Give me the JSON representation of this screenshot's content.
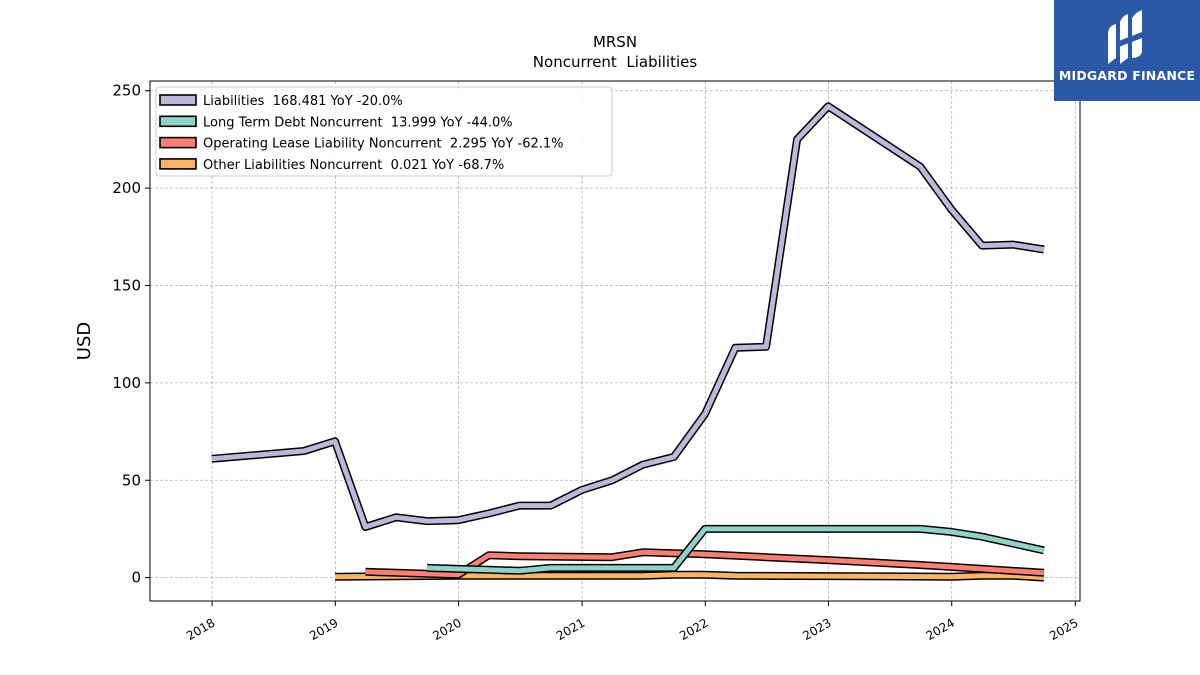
{
  "chart_data": {
    "type": "line",
    "title": "MRSN",
    "subtitle": "Noncurrent  Liabilities",
    "xlabel": "",
    "ylabel": "USD",
    "xlim": [
      "2017-07-01",
      "2025-01-15"
    ],
    "ylim": [
      -12,
      255
    ],
    "x_ticks": [
      "2018",
      "2019",
      "2020",
      "2021",
      "2022",
      "2023",
      "2024",
      "2025"
    ],
    "y_ticks": [
      0,
      50,
      100,
      150,
      200,
      250
    ],
    "grid": true,
    "legend_position": "top-left",
    "series": [
      {
        "name": "Liabilities  168.481 YoY -20.0%",
        "color": "#bcb8d9",
        "points": [
          [
            "2017-12-31",
            61.0
          ],
          [
            "2018-09-30",
            65.0
          ],
          [
            "2018-12-31",
            70.0
          ],
          [
            "2019-03-31",
            26.0
          ],
          [
            "2019-06-30",
            31.0
          ],
          [
            "2019-09-30",
            29.0
          ],
          [
            "2019-12-31",
            29.5
          ],
          [
            "2020-03-31",
            33.0
          ],
          [
            "2020-06-30",
            37.0
          ],
          [
            "2020-09-30",
            37.0
          ],
          [
            "2020-12-31",
            45.0
          ],
          [
            "2021-03-31",
            50.0
          ],
          [
            "2021-06-30",
            58.0
          ],
          [
            "2021-09-30",
            62.0
          ],
          [
            "2021-12-31",
            84.0
          ],
          [
            "2022-03-31",
            118.0
          ],
          [
            "2022-06-30",
            118.5
          ],
          [
            "2022-09-30",
            225.0
          ],
          [
            "2022-12-31",
            242.0
          ],
          [
            "2023-09-30",
            211.0
          ],
          [
            "2023-12-31",
            189.0
          ],
          [
            "2024-03-31",
            170.5
          ],
          [
            "2024-06-30",
            171.0
          ],
          [
            "2024-09-30",
            168.5
          ]
        ]
      },
      {
        "name": "Long Term Debt Noncurrent  13.999 YoY -44.0%",
        "color": "#8dd3c7",
        "points": [
          [
            "2019-09-30",
            5.0
          ],
          [
            "2019-12-31",
            4.5
          ],
          [
            "2020-03-31",
            4.0
          ],
          [
            "2020-06-30",
            3.5
          ],
          [
            "2020-09-30",
            5.0
          ],
          [
            "2020-12-31",
            5.0
          ],
          [
            "2021-03-31",
            5.0
          ],
          [
            "2021-06-30",
            5.0
          ],
          [
            "2021-09-30",
            5.0
          ],
          [
            "2021-12-31",
            25.0
          ],
          [
            "2022-03-31",
            25.0
          ],
          [
            "2022-12-31",
            25.0
          ],
          [
            "2023-09-30",
            25.0
          ],
          [
            "2023-12-31",
            23.5
          ],
          [
            "2024-03-31",
            21.0
          ],
          [
            "2024-09-30",
            14.0
          ]
        ]
      },
      {
        "name": "Operating Lease Liability Noncurrent  2.295 YoY -62.1%",
        "color": "#fb8072",
        "points": [
          [
            "2019-03-31",
            3.0
          ],
          [
            "2019-06-30",
            2.5
          ],
          [
            "2019-09-30",
            2.0
          ],
          [
            "2019-12-31",
            1.5
          ],
          [
            "2020-03-31",
            11.5
          ],
          [
            "2020-06-30",
            11.0
          ],
          [
            "2021-03-31",
            10.5
          ],
          [
            "2021-06-30",
            13.0
          ],
          [
            "2021-12-31",
            12.0
          ],
          [
            "2022-06-30",
            10.5
          ],
          [
            "2022-12-31",
            9.0
          ],
          [
            "2023-09-30",
            6.5
          ],
          [
            "2023-12-31",
            5.5
          ],
          [
            "2024-09-30",
            2.5
          ]
        ]
      },
      {
        "name": "Other Liabilities Noncurrent  0.021 YoY -68.7%",
        "color": "#fdb462",
        "points": [
          [
            "2018-12-31",
            0.5
          ],
          [
            "2019-12-31",
            1.0
          ],
          [
            "2020-12-31",
            1.0
          ],
          [
            "2021-06-30",
            1.0
          ],
          [
            "2021-09-30",
            1.5
          ],
          [
            "2021-12-31",
            1.5
          ],
          [
            "2022-03-31",
            1.0
          ],
          [
            "2023-12-31",
            0.5
          ],
          [
            "2024-03-31",
            1.0
          ],
          [
            "2024-06-30",
            1.0
          ],
          [
            "2024-09-30",
            0.0
          ]
        ]
      }
    ]
  },
  "logo": {
    "text": "MIDGARD FINANCE"
  }
}
